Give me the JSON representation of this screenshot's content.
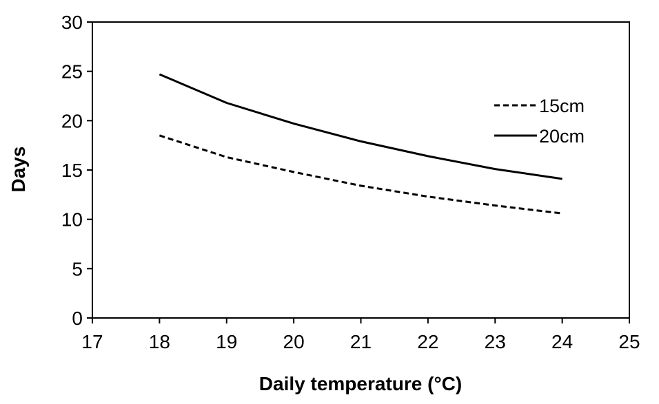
{
  "chart_data": {
    "type": "line",
    "title": "",
    "xlabel": "Daily temperature (°C)",
    "ylabel": "Days",
    "xlim": [
      17,
      25
    ],
    "ylim": [
      0,
      30
    ],
    "xticks": [
      "17",
      "18",
      "19",
      "20",
      "21",
      "22",
      "23",
      "24",
      "25"
    ],
    "yticks": [
      "0",
      "5",
      "10",
      "15",
      "20",
      "25",
      "30"
    ],
    "grid": false,
    "legend_position": "right",
    "x": [
      18,
      19,
      20,
      21,
      22,
      23,
      24
    ],
    "series": [
      {
        "name": "15cm",
        "style": "dashed",
        "color": "#000000",
        "values": [
          18.5,
          16.3,
          14.8,
          13.4,
          12.3,
          11.4,
          10.6
        ]
      },
      {
        "name": "20cm",
        "style": "solid",
        "color": "#000000",
        "values": [
          24.7,
          21.8,
          19.7,
          17.9,
          16.4,
          15.1,
          14.1
        ]
      }
    ]
  }
}
